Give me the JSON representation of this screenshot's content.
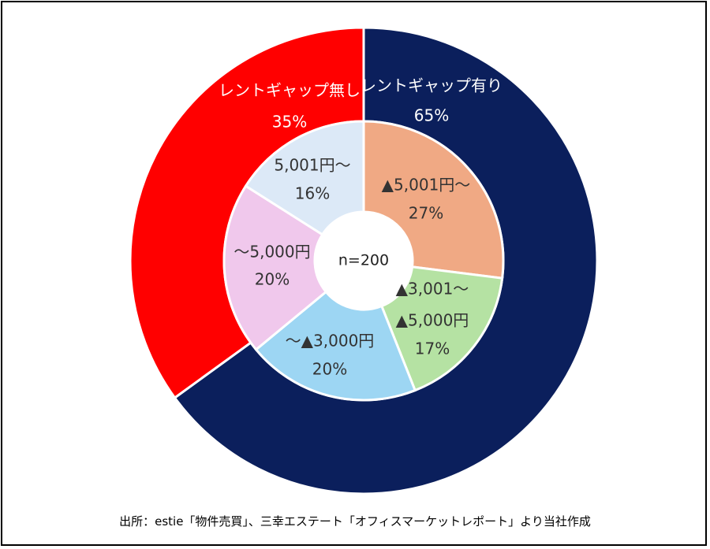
{
  "chart_data": {
    "type": "pie",
    "variant": "double-donut",
    "center_label": "n=200",
    "outer": {
      "slices": [
        {
          "label": "レントギャップ有り",
          "value": 65,
          "display": "65%",
          "color": "#0b1f5c",
          "label_color": "#ffffff"
        },
        {
          "label": "レントギャップ無し",
          "value": 35,
          "display": "35%",
          "color": "#ff0000",
          "label_color": "#ffffff"
        }
      ]
    },
    "inner": {
      "slices": [
        {
          "label_lines": [
            "▲5,001円～"
          ],
          "value": 27,
          "display": "27%",
          "color": "#f0a984"
        },
        {
          "label_lines": [
            "▲3,001～",
            "▲5,000円"
          ],
          "value": 17,
          "display": "17%",
          "color": "#b5e2a3"
        },
        {
          "label_lines": [
            "～▲3,000円"
          ],
          "value": 20,
          "display": "20%",
          "color": "#9dd6f3"
        },
        {
          "label_lines": [
            "～5,000円"
          ],
          "value": 20,
          "display": "20%",
          "color": "#f0c8ec"
        },
        {
          "label_lines": [
            "5,001円～"
          ],
          "value": 16,
          "display": "16%",
          "color": "#dce9f7"
        }
      ]
    }
  },
  "source": "出所：estie「物件売買」、三幸エステート「オフィスマーケットレポート」より当社作成"
}
